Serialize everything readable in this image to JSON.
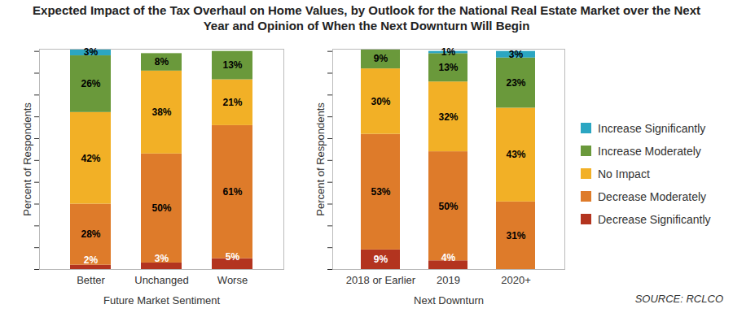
{
  "chart_data": [
    {
      "type": "bar",
      "title": "Expected Impact of the Tax Overhaul on Home Values, by Outlook for the National Real Estate Market over the Next Year and Opinion of When the Next Downturn Will Begin",
      "stacked": true,
      "data_labels": true,
      "tick_labels": "x",
      "grid": false,
      "xlabel": "Future Market Sentiment",
      "ylabel": "Percent of Respondents",
      "categories": [
        "Better",
        "Unchanged",
        "Worse"
      ],
      "ylim": [
        0,
        101
      ],
      "yticks": [
        0,
        10,
        20,
        30,
        40,
        50,
        60,
        70,
        80,
        90,
        100
      ],
      "series": [
        {
          "name": "Decrease Significantly",
          "color": "#b3341f",
          "values": [
            2,
            3,
            5
          ],
          "value_labels": [
            "2%",
            "3%",
            "5%"
          ]
        },
        {
          "name": "Decrease Moderately",
          "color": "#de7b2a",
          "values": [
            28,
            50,
            61
          ],
          "value_labels": [
            "28%",
            "50%",
            "61%"
          ]
        },
        {
          "name": "No Impact",
          "color": "#f2b026",
          "values": [
            42,
            38,
            21
          ],
          "value_labels": [
            "42%",
            "38%",
            "21%"
          ]
        },
        {
          "name": "Increase Moderately",
          "color": "#6a993b",
          "values": [
            26,
            8,
            13
          ],
          "value_labels": [
            "26%",
            "8%",
            "13%"
          ]
        },
        {
          "name": "Increase Significantly",
          "color": "#2ba6c2",
          "values": [
            3,
            null,
            null
          ],
          "value_labels": [
            "3%",
            null,
            null
          ]
        }
      ]
    },
    {
      "type": "bar",
      "stacked": true,
      "data_labels": true,
      "tick_labels": "x",
      "grid": false,
      "legend": "right",
      "caption": "SOURCE: RCLCO",
      "xlabel": "Next Downturn",
      "ylabel": "Percent of Respondents",
      "categories": [
        "2018 or Earlier",
        "2019",
        "2020+"
      ],
      "ylim": [
        0,
        101
      ],
      "yticks": [
        0,
        10,
        20,
        30,
        40,
        50,
        60,
        70,
        80,
        90,
        100
      ],
      "series": [
        {
          "name": "Decrease Significantly",
          "color": "#b3341f",
          "values": [
            9,
            4,
            null
          ],
          "value_labels": [
            "9%",
            "4%",
            null
          ]
        },
        {
          "name": "Decrease Moderately",
          "color": "#de7b2a",
          "values": [
            53,
            50,
            31
          ],
          "value_labels": [
            "53%",
            "50%",
            "31%"
          ]
        },
        {
          "name": "No Impact",
          "color": "#f2b026",
          "values": [
            30,
            32,
            43
          ],
          "value_labels": [
            "30%",
            "32%",
            "43%"
          ]
        },
        {
          "name": "Increase Moderately",
          "color": "#6a993b",
          "values": [
            9,
            13,
            23
          ],
          "value_labels": [
            "9%",
            "13%",
            "23%"
          ]
        },
        {
          "name": "Increase Significantly",
          "color": "#2ba6c2",
          "values": [
            null,
            1,
            3
          ],
          "value_labels": [
            null,
            "1%",
            "3%"
          ]
        }
      ]
    }
  ]
}
